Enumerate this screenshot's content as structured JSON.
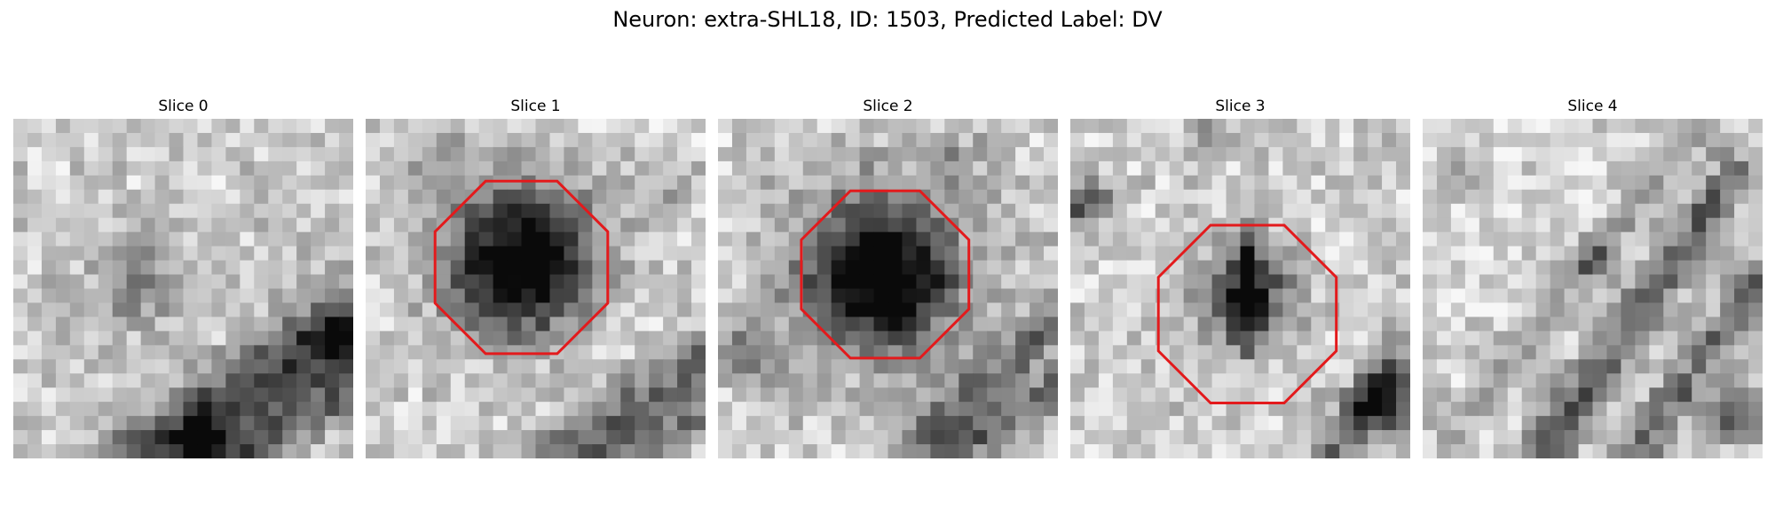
{
  "figure": {
    "title": "Neuron: extra-SHL18, ID: 1503, Predicted Label: DV"
  },
  "panels": [
    {
      "title": "Slice 0",
      "has_outline": false
    },
    {
      "title": "Slice 1",
      "has_outline": true
    },
    {
      "title": "Slice 2",
      "has_outline": true
    },
    {
      "title": "Slice 3",
      "has_outline": true
    },
    {
      "title": "Slice 4",
      "has_outline": false
    }
  ],
  "colors": {
    "outline": "#e31a1c",
    "background": "#ffffff"
  }
}
